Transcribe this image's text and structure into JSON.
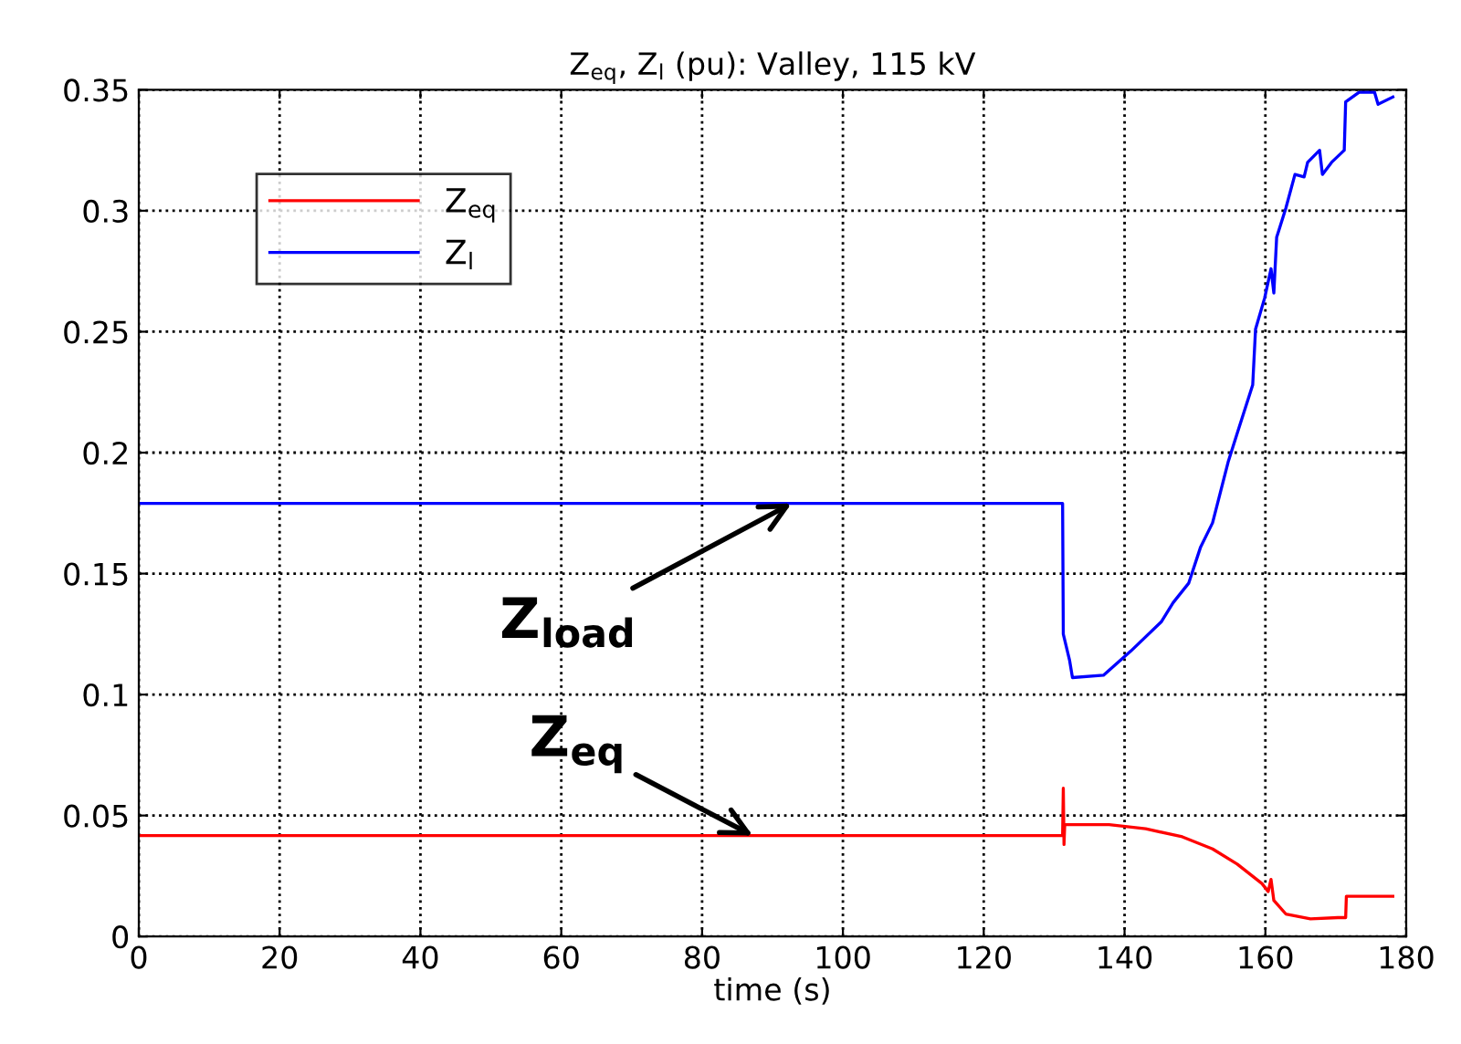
{
  "chart_data": {
    "type": "line",
    "title": "Z$_{eq}$, Z$_{l}$ (pu): Valley, 115 kV",
    "xlabel": "time (s)",
    "xlim": [
      0,
      180
    ],
    "xticks": [
      0,
      20,
      40,
      60,
      80,
      100,
      120,
      140,
      160,
      180
    ],
    "ylim": [
      0,
      0.35
    ],
    "yticks": [
      0,
      0.05,
      0.1,
      0.15,
      0.2,
      0.25,
      0.3,
      0.35
    ],
    "grid": true,
    "legend": "top left",
    "line_style": "solid",
    "marker": "none",
    "series": [
      {
        "name": "Z$_{eq}$",
        "color": "#ff0000",
        "x": [
          0,
          131.2,
          131.3,
          131.4,
          131.5,
          132.2,
          137.8,
          143,
          148.2,
          152.5,
          156,
          159.5,
          160.4,
          160.8,
          161.2,
          162.9,
          166.4,
          170.3,
          171.4,
          171.5,
          178.1
        ],
        "values": [
          0.0417,
          0.0417,
          0.0613,
          0.038,
          0.0462,
          0.0462,
          0.0462,
          0.0445,
          0.0412,
          0.0362,
          0.0299,
          0.0219,
          0.0186,
          0.0236,
          0.0149,
          0.0093,
          0.0073,
          0.0078,
          0.0078,
          0.0166,
          0.0166
        ]
      },
      {
        "name": "Z$_{l}$",
        "color": "#0000ff",
        "x": [
          0,
          131.2,
          131.3,
          132.2,
          132.6,
          137,
          140.9,
          145.2,
          146.9,
          149.1,
          150.8,
          152.5,
          154.7,
          156,
          158.2,
          158.6,
          159.9,
          160.8,
          161.2,
          161.6,
          162.9,
          164.2,
          165.5,
          166,
          167.7,
          168.1,
          169.4,
          171.2,
          171.4,
          173.3,
          175.5,
          176,
          178.1
        ],
        "values": [
          0.179,
          0.179,
          0.125,
          0.114,
          0.107,
          0.108,
          0.118,
          0.13,
          0.138,
          0.146,
          0.161,
          0.171,
          0.196,
          0.208,
          0.228,
          0.251,
          0.264,
          0.276,
          0.266,
          0.289,
          0.301,
          0.315,
          0.314,
          0.32,
          0.325,
          0.315,
          0.32,
          0.325,
          0.345,
          0.349,
          0.349,
          0.344,
          0.347
        ]
      }
    ],
    "annotations": [
      {
        "text": "Z$_{load}$",
        "x": 92.7,
        "y": 0.179
      },
      {
        "text": "Z$_{eq}$",
        "x": 87.2,
        "y": 0.0417
      }
    ]
  }
}
